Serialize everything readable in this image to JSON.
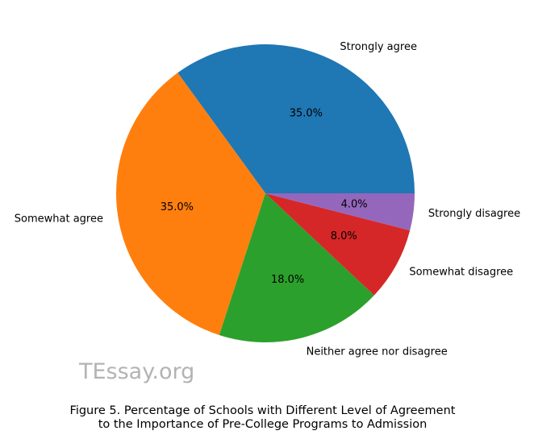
{
  "chart_data": {
    "type": "pie",
    "categories": [
      "Strongly agree",
      "Somewhat agree",
      "Neither agree nor disagree",
      "Somewhat disagree",
      "Strongly disagree"
    ],
    "values": [
      35.0,
      35.0,
      18.0,
      8.0,
      4.0
    ],
    "percent_labels": [
      "35.0%",
      "35.0%",
      "18.0%",
      "8.0%",
      "4.0%"
    ],
    "colors": [
      "#1f77b4",
      "#ff7f0e",
      "#2ca02c",
      "#d62728",
      "#9467bd"
    ],
    "start_angle_deg": 0,
    "direction": "counterclockwise",
    "title": "",
    "legend": "none"
  },
  "watermark": "TEssay.org",
  "caption": {
    "line1": "Figure 5. Percentage of Schools with Different Level of Agreement",
    "line2": "to the Importance of Pre-College Programs to Admission"
  }
}
